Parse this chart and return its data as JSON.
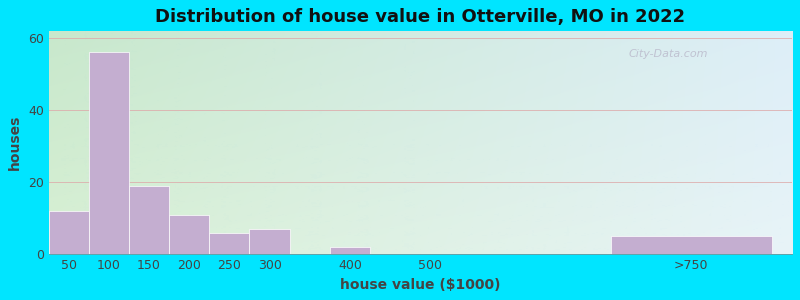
{
  "title": "Distribution of house value in Otterville, MO in 2022",
  "xlabel": "house value ($1000)",
  "ylabel": "houses",
  "bar_centers": [
    50,
    100,
    150,
    200,
    250,
    300,
    400,
    500,
    825
  ],
  "bar_widths": [
    50,
    50,
    50,
    50,
    50,
    50,
    50,
    50,
    200
  ],
  "bar_values": [
    12,
    56,
    19,
    11,
    6,
    7,
    2,
    0,
    5
  ],
  "bar_color": "#c4aed0",
  "bar_edgecolor": "#ffffff",
  "ylim": [
    0,
    62
  ],
  "xlim": [
    25,
    950
  ],
  "yticks": [
    0,
    20,
    40,
    60
  ],
  "xtick_positions": [
    50,
    100,
    150,
    200,
    250,
    300,
    400,
    500,
    825
  ],
  "xtick_labels": [
    "50",
    "100",
    "150",
    "200",
    "250",
    "300",
    "400",
    "500",
    ">750"
  ],
  "background_outer": "#00e5ff",
  "background_inner_topleft": "#c8e8cc",
  "background_inner_topright": "#ddeef8",
  "background_inner_botleft": "#d8f0d4",
  "background_inner_botright": "#e8f4f8",
  "title_fontsize": 13,
  "axis_fontsize": 10,
  "tick_fontsize": 9,
  "watermark_text": "City-Data.com",
  "figsize": [
    8.0,
    3.0
  ],
  "dpi": 100
}
